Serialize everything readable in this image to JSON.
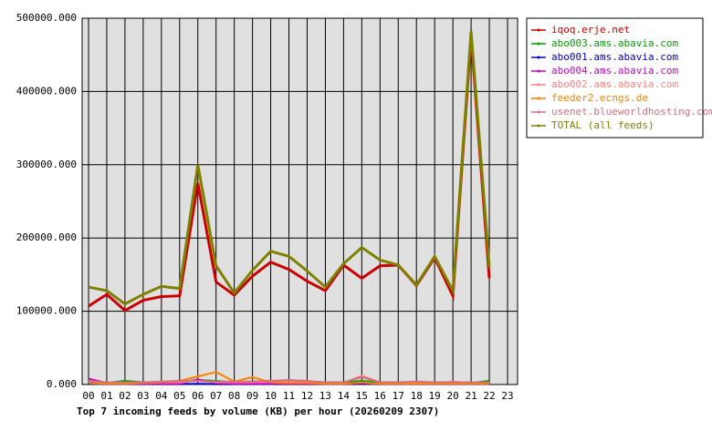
{
  "chart_data": {
    "type": "line",
    "title": "Top 7 incoming feeds by volume (KB) per hour (20260209 2307)",
    "categories": [
      "00",
      "01",
      "02",
      "03",
      "04",
      "05",
      "06",
      "07",
      "08",
      "09",
      "10",
      "11",
      "12",
      "13",
      "14",
      "15",
      "16",
      "17",
      "18",
      "19",
      "20",
      "21",
      "22",
      "23"
    ],
    "ylim": [
      0,
      500000
    ],
    "yticks": [
      {
        "value": 0,
        "label": "0.000"
      },
      {
        "value": 100000,
        "label": "100000.000"
      },
      {
        "value": 200000,
        "label": "200000.000"
      },
      {
        "value": 300000,
        "label": "300000.000"
      },
      {
        "value": 400000,
        "label": "400000.000"
      },
      {
        "value": 500000,
        "label": "500000.000"
      }
    ],
    "grid": true,
    "legend": "outside-right",
    "series": [
      {
        "name": "iqoq.erje.net",
        "color": "#cc0000",
        "values": [
          107000,
          123000,
          101000,
          115000,
          120000,
          121000,
          275000,
          140000,
          122000,
          148000,
          167000,
          157000,
          141000,
          128000,
          163000,
          145000,
          162000,
          163000,
          135000,
          173000,
          121000,
          475000,
          145000,
          null
        ]
      },
      {
        "name": "abo003.ams.abavia.com",
        "color": "#00a000",
        "values": [
          3000,
          2000,
          5000,
          3000,
          3000,
          4000,
          6000,
          5000,
          3000,
          4000,
          5000,
          5000,
          4000,
          3000,
          3000,
          5000,
          3000,
          3000,
          3000,
          3000,
          3000,
          2000,
          5000,
          null
        ]
      },
      {
        "name": "abo001.ams.abavia.com",
        "color": "#0000cc",
        "values": [
          1000,
          500,
          500,
          500,
          500,
          500,
          1000,
          500,
          500,
          500,
          500,
          500,
          500,
          500,
          500,
          1000,
          500,
          500,
          500,
          500,
          500,
          500,
          500,
          null
        ]
      },
      {
        "name": "abo004.ams.abavia.com",
        "color": "#cc00cc",
        "values": [
          8000,
          2000,
          1000,
          1000,
          1000,
          1000,
          7000,
          2000,
          1000,
          1000,
          1000,
          1000,
          1000,
          1000,
          1000,
          2000,
          1000,
          1000,
          1000,
          1000,
          1000,
          1000,
          1000,
          null
        ]
      },
      {
        "name": "abo002.ams.abavia.com",
        "color": "#ff8080",
        "values": [
          5000,
          2000,
          2000,
          2000,
          3000,
          3000,
          5000,
          3000,
          3000,
          3000,
          4000,
          5000,
          4000,
          2000,
          2000,
          12000,
          3000,
          2000,
          3000,
          2000,
          4000,
          2000,
          2000,
          null
        ]
      },
      {
        "name": "feeder2.ecngs.de",
        "color": "#ff8000",
        "values": [
          2000,
          1000,
          1000,
          2000,
          3000,
          5000,
          11000,
          17000,
          4000,
          10000,
          3000,
          2000,
          2000,
          1000,
          1000,
          3000,
          1000,
          1000,
          1000,
          1000,
          1000,
          1000,
          1000,
          null
        ]
      },
      {
        "name": "usenet.blueworldhosting.com",
        "color": "#d07080",
        "values": [
          5000,
          3000,
          3000,
          3000,
          4000,
          5000,
          5000,
          4000,
          4000,
          4000,
          5000,
          6000,
          5000,
          3000,
          3000,
          10000,
          3000,
          3000,
          4000,
          3000,
          3000,
          3000,
          3000,
          null
        ]
      },
      {
        "name": "TOTAL (all feeds)",
        "color": "#808000",
        "values": [
          133000,
          128000,
          110000,
          123000,
          134000,
          131000,
          300000,
          162000,
          125000,
          156000,
          182000,
          175000,
          155000,
          133000,
          165000,
          187000,
          170000,
          163000,
          136000,
          175000,
          128000,
          482000,
          160000,
          null
        ]
      }
    ]
  }
}
